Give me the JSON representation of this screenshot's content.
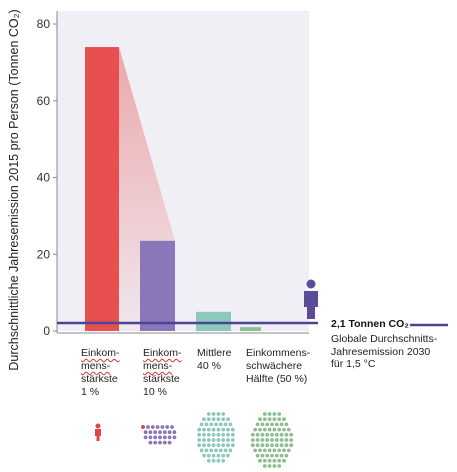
{
  "chart_data": {
    "type": "bar",
    "ylabel": "Durchschnittliche Jahresemission 2015 pro Person (Tonnen CO₂)",
    "ylim": [
      0,
      80
    ],
    "yticks": [
      0,
      20,
      40,
      60,
      80
    ],
    "categories": [
      [
        "Einkom-",
        "mens-",
        "stärkste",
        "1 %"
      ],
      [
        "Einkom-",
        "mens-",
        "stärkste",
        "10 %"
      ],
      [
        "Mittlere",
        "40 %"
      ],
      [
        "Einkommens-",
        "schwächere",
        "Hälfte (50 %)"
      ]
    ],
    "values": [
      74,
      23.5,
      5,
      1
    ],
    "colors": [
      "#e85050",
      "#8a77b9",
      "#8cc9bc",
      "#8dbf93"
    ],
    "reference_line": {
      "value": 2.1,
      "label": "2,1 Tonnen CO₂",
      "description": [
        "Globale Durchschnitts-",
        "Jahresemission 2030",
        "für 1,5 °C"
      ],
      "color": "#4a4594"
    },
    "grid": false
  }
}
